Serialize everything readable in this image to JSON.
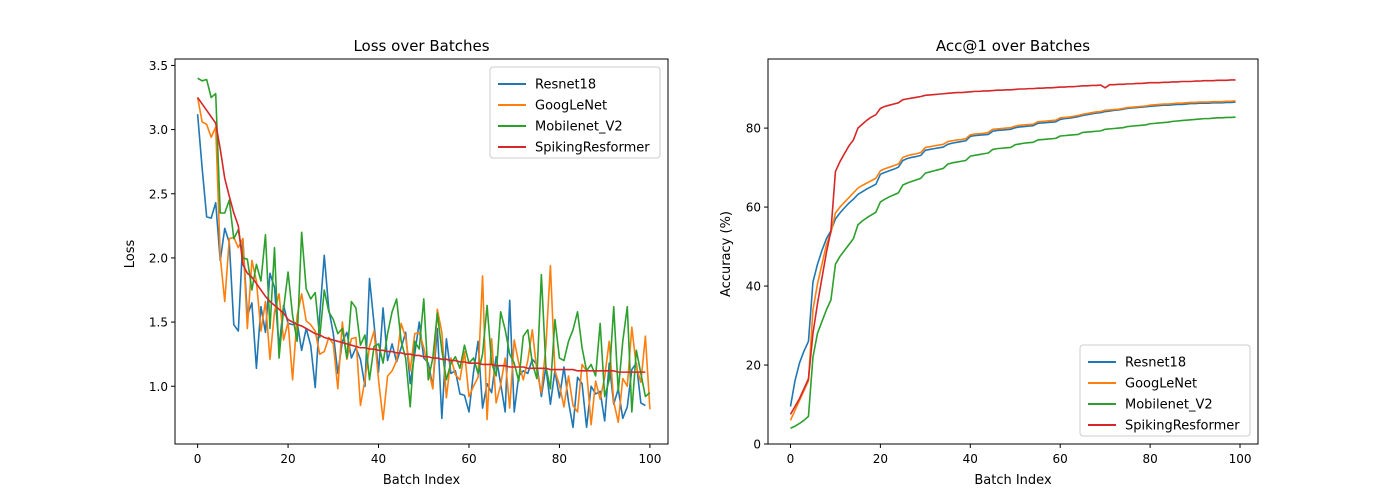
{
  "colors": {
    "Resnet18": "#1f77b4",
    "GoogLeNet": "#ff7f0e",
    "Mobilenet_V2": "#2ca02c",
    "SpikingResformer": "#d62728"
  },
  "chart_data": [
    {
      "type": "line",
      "title": "Loss over Batches",
      "xlabel": "Batch Index",
      "ylabel": "Loss",
      "xlim": [
        -5,
        104
      ],
      "ylim": [
        0.55,
        3.55
      ],
      "xticks": [
        0,
        20,
        40,
        60,
        80,
        100
      ],
      "yticks": [
        1.0,
        1.5,
        2.0,
        2.5,
        3.0,
        3.5
      ],
      "ytick_labels": [
        "1.0",
        "1.5",
        "2.0",
        "2.5",
        "3.0",
        "3.5"
      ],
      "legend": "upper right",
      "series": [
        {
          "name": "Resnet18",
          "values": [
            3.12,
            2.7,
            2.32,
            2.31,
            2.43,
            1.98,
            2.23,
            2.12,
            1.48,
            1.43,
            2.15,
            1.55,
            1.65,
            1.14,
            1.62,
            1.42,
            1.88,
            1.77,
            1.3,
            1.63,
            1.49,
            1.48,
            1.5,
            1.28,
            1.45,
            1.32,
            0.99,
            1.55,
            2.02,
            1.6,
            1.41,
            1.1,
            1.35,
            1.42,
            1.22,
            1.3,
            1.21,
            1.0,
            1.84,
            1.49,
            1.11,
            1.61,
            1.2,
            1.33,
            1.19,
            1.3,
            1.42,
            1.02,
            1.25,
            1.5,
            1.22,
            1.18,
            1.0,
            1.45,
            0.75,
            1.37,
            1.1,
            1.12,
            0.94,
            0.93,
            0.8,
            1.11,
            1.35,
            0.83,
            1.02,
            0.95,
            1.23,
            1.02,
            0.8,
            1.67,
            0.8,
            1.08,
            1.12,
            1.1,
            1.21,
            1.17,
            0.92,
            1.15,
            0.86,
            1.12,
            0.91,
            1.15,
            0.88,
            0.68,
            1.07,
            1.02,
            0.68,
            1.0,
            0.94,
            0.96,
            0.73,
            1.18,
            0.86,
            0.98,
            0.75,
            0.84,
            1.13,
            1.18,
            0.87,
            0.85
          ]
        },
        {
          "name": "GoogLeNet",
          "values": [
            3.25,
            3.06,
            3.04,
            2.94,
            3.02,
            2.01,
            1.66,
            2.15,
            2.16,
            2.08,
            2.15,
            1.45,
            1.98,
            1.82,
            1.43,
            1.66,
            1.21,
            1.58,
            1.72,
            1.36,
            1.5,
            1.05,
            1.55,
            1.72,
            1.51,
            1.48,
            1.43,
            1.25,
            1.27,
            1.38,
            1.33,
            0.98,
            1.5,
            1.21,
            1.37,
            1.38,
            0.85,
            1.05,
            1.31,
            1.43,
            1.05,
            0.74,
            1.08,
            1.12,
            1.2,
            1.49,
            1.38,
            1.12,
            1.41,
            1.42,
            1.3,
            1.14,
            0.98,
            1.6,
            1.42,
            0.91,
            1.22,
            1.09,
            1.05,
            1.27,
            0.92,
            1.0,
            1.07,
            1.86,
            0.74,
            1.37,
            0.87,
            1.01,
            1.22,
            0.83,
            1.36,
            1.18,
            1.05,
            1.2,
            1.44,
            1.12,
            0.95,
            1.31,
            1.94,
            1.12,
            1.01,
            0.84,
            1.08,
            0.85,
            0.8,
            1.17,
            1.12,
            0.7,
            1.04,
            0.9,
            1.07,
            1.35,
            0.88,
            0.72,
            1.06,
            1.0,
            1.46,
            1.15,
            1.03,
            1.39,
            0.82
          ]
        },
        {
          "name": "Mobilenet_V2",
          "values": [
            3.4,
            3.38,
            3.39,
            3.25,
            3.28,
            2.35,
            2.35,
            2.45,
            2.15,
            2.22,
            2.0,
            1.99,
            1.75,
            1.95,
            1.82,
            2.18,
            1.45,
            2.08,
            1.22,
            1.6,
            1.89,
            1.55,
            1.35,
            2.2,
            1.76,
            1.68,
            1.73,
            1.38,
            1.75,
            1.58,
            1.52,
            1.41,
            1.45,
            1.22,
            1.66,
            1.61,
            1.32,
            1.4,
            1.05,
            1.31,
            1.33,
            1.18,
            1.41,
            1.58,
            1.68,
            1.35,
            1.22,
            0.84,
            1.35,
            1.29,
            1.68,
            1.05,
            1.22,
            1.57,
            1.28,
            1.05,
            1.18,
            1.23,
            1.14,
            1.32,
            1.18,
            1.22,
            1.1,
            1.25,
            1.63,
            1.18,
            1.08,
            1.58,
            1.44,
            1.25,
            1.18,
            1.04,
            1.39,
            1.44,
            1.18,
            1.06,
            1.87,
            1.15,
            0.98,
            1.52,
            1.22,
            1.2,
            1.35,
            1.44,
            1.58,
            1.3,
            1.12,
            1.17,
            1.08,
            1.49,
            0.92,
            1.05,
            1.62,
            0.96,
            1.35,
            1.62,
            0.8,
            1.28,
            1.1,
            0.92,
            0.95
          ]
        },
        {
          "name": "SpikingResformer",
          "values": [
            3.25,
            3.2,
            3.15,
            3.1,
            3.05,
            2.85,
            2.62,
            2.48,
            2.35,
            2.25,
            1.95,
            1.88,
            1.85,
            1.8,
            1.75,
            1.7,
            1.66,
            1.63,
            1.6,
            1.57,
            1.52,
            1.5,
            1.48,
            1.47,
            1.45,
            1.43,
            1.41,
            1.4,
            1.38,
            1.37,
            1.36,
            1.35,
            1.34,
            1.33,
            1.32,
            1.31,
            1.3,
            1.3,
            1.29,
            1.29,
            1.28,
            1.28,
            1.27,
            1.27,
            1.26,
            1.26,
            1.25,
            1.25,
            1.24,
            1.24,
            1.23,
            1.23,
            1.22,
            1.22,
            1.21,
            1.21,
            1.2,
            1.2,
            1.19,
            1.19,
            1.18,
            1.18,
            1.18,
            1.17,
            1.17,
            1.17,
            1.16,
            1.16,
            1.16,
            1.15,
            1.15,
            1.15,
            1.15,
            1.14,
            1.14,
            1.14,
            1.14,
            1.14,
            1.13,
            1.13,
            1.13,
            1.13,
            1.13,
            1.13,
            1.12,
            1.12,
            1.12,
            1.12,
            1.12,
            1.12,
            1.12,
            1.12,
            1.12,
            1.11,
            1.11,
            1.11,
            1.11,
            1.11,
            1.11,
            1.11
          ]
        }
      ]
    },
    {
      "type": "line",
      "title": "Acc@1 over Batches",
      "xlabel": "Batch Index",
      "ylabel": "Accuracy (%)",
      "xlim": [
        -5,
        104
      ],
      "ylim": [
        0,
        97.5
      ],
      "xticks": [
        0,
        20,
        40,
        60,
        80,
        100
      ],
      "yticks": [
        0,
        20,
        40,
        60,
        80
      ],
      "ytick_labels": [
        "0",
        "20",
        "40",
        "60",
        "80"
      ],
      "legend": "lower right",
      "series": [
        {
          "name": "Resnet18",
          "values": [
            9.5,
            16.0,
            20.5,
            23.5,
            26.0,
            41.0,
            45.5,
            49.0,
            52.0,
            54.0,
            57.0,
            58.5,
            59.8,
            61.0,
            62.0,
            63.2,
            63.9,
            64.6,
            65.2,
            65.8,
            68.3,
            68.8,
            69.2,
            69.6,
            70.1,
            71.8,
            72.3,
            72.6,
            72.8,
            73.1,
            74.4,
            74.6,
            74.8,
            75.0,
            75.2,
            75.9,
            76.2,
            76.4,
            76.6,
            76.8,
            77.9,
            78.1,
            78.2,
            78.3,
            78.4,
            79.2,
            79.4,
            79.5,
            79.6,
            79.7,
            80.1,
            80.3,
            80.4,
            80.5,
            80.6,
            81.2,
            81.3,
            81.4,
            81.5,
            81.6,
            82.2,
            82.4,
            82.5,
            82.7,
            82.9,
            83.2,
            83.4,
            83.6,
            83.8,
            83.9,
            84.2,
            84.3,
            84.5,
            84.6,
            84.8,
            85.0,
            85.1,
            85.2,
            85.3,
            85.4,
            85.5,
            85.6,
            85.7,
            85.8,
            85.8,
            85.9,
            86.0,
            86.0,
            86.1,
            86.2,
            86.2,
            86.3,
            86.3,
            86.3,
            86.4,
            86.4,
            86.4,
            86.5,
            86.5,
            86.6
          ]
        },
        {
          "name": "GoogLeNet",
          "values": [
            6.0,
            8.5,
            11.0,
            13.5,
            16.0,
            34.0,
            40.5,
            45.5,
            50.5,
            53.5,
            58.5,
            60.0,
            61.2,
            62.4,
            63.6,
            64.8,
            65.5,
            66.1,
            66.7,
            67.3,
            69.2,
            69.7,
            70.1,
            70.5,
            70.9,
            72.6,
            73.0,
            73.3,
            73.5,
            73.8,
            75.1,
            75.3,
            75.5,
            75.7,
            75.9,
            76.6,
            76.8,
            77.0,
            77.1,
            77.3,
            78.3,
            78.5,
            78.6,
            78.7,
            78.9,
            79.7,
            79.8,
            79.9,
            80.0,
            80.1,
            80.5,
            80.7,
            80.8,
            80.9,
            81.0,
            81.6,
            81.7,
            81.8,
            81.9,
            82.0,
            82.6,
            82.7,
            82.8,
            83.0,
            83.2,
            83.5,
            83.7,
            83.9,
            84.1,
            84.2,
            84.5,
            84.6,
            84.7,
            84.8,
            85.0,
            85.2,
            85.3,
            85.4,
            85.5,
            85.6,
            85.8,
            85.9,
            86.0,
            86.1,
            86.1,
            86.2,
            86.3,
            86.3,
            86.4,
            86.5,
            86.5,
            86.6,
            86.6,
            86.6,
            86.7,
            86.7,
            86.7,
            86.8,
            86.8,
            86.9
          ]
        },
        {
          "name": "Mobilenet_V2",
          "values": [
            4.0,
            4.5,
            5.2,
            6.0,
            7.0,
            22.0,
            28.0,
            31.0,
            34.0,
            36.5,
            45.5,
            47.5,
            49.0,
            50.5,
            52.0,
            55.5,
            56.5,
            57.3,
            58.0,
            58.7,
            61.3,
            62.0,
            62.6,
            63.1,
            63.6,
            65.6,
            66.1,
            66.5,
            66.9,
            67.3,
            68.6,
            68.9,
            69.2,
            69.5,
            69.8,
            70.9,
            71.2,
            71.4,
            71.6,
            71.8,
            72.9,
            73.1,
            73.3,
            73.5,
            73.7,
            74.6,
            74.8,
            74.9,
            75.0,
            75.1,
            75.8,
            76.0,
            76.2,
            76.3,
            76.4,
            77.0,
            77.1,
            77.2,
            77.3,
            77.4,
            78.0,
            78.1,
            78.2,
            78.3,
            78.4,
            78.9,
            79.0,
            79.1,
            79.2,
            79.3,
            79.7,
            79.8,
            79.9,
            80.0,
            80.1,
            80.4,
            80.5,
            80.6,
            80.7,
            80.8,
            81.1,
            81.2,
            81.3,
            81.4,
            81.5,
            81.7,
            81.8,
            81.9,
            82.0,
            82.1,
            82.2,
            82.3,
            82.4,
            82.4,
            82.5,
            82.6,
            82.6,
            82.7,
            82.7,
            82.8
          ]
        },
        {
          "name": "SpikingResformer",
          "values": [
            7.5,
            9.5,
            11.5,
            14.0,
            16.5,
            28.0,
            35.5,
            42.0,
            48.5,
            54.0,
            69.0,
            71.5,
            73.5,
            75.5,
            77.0,
            80.0,
            81.0,
            82.0,
            82.8,
            83.4,
            85.0,
            85.5,
            85.8,
            86.1,
            86.4,
            87.2,
            87.4,
            87.6,
            87.8,
            88.0,
            88.3,
            88.4,
            88.5,
            88.6,
            88.7,
            88.8,
            88.9,
            89.0,
            89.0,
            89.1,
            89.2,
            89.3,
            89.3,
            89.4,
            89.4,
            89.5,
            89.6,
            89.6,
            89.7,
            89.7,
            89.8,
            89.9,
            89.9,
            90.0,
            90.0,
            90.1,
            90.1,
            90.2,
            90.2,
            90.3,
            90.4,
            90.4,
            90.5,
            90.5,
            90.6,
            90.7,
            90.7,
            90.8,
            90.8,
            90.9,
            90.2,
            91.0,
            91.0,
            91.1,
            91.1,
            91.2,
            91.2,
            91.3,
            91.3,
            91.4,
            91.5,
            91.5,
            91.5,
            91.6,
            91.6,
            91.7,
            91.7,
            91.8,
            91.8,
            91.8,
            91.9,
            91.9,
            92.0,
            92.0,
            92.0,
            92.1,
            92.1,
            92.1,
            92.2,
            92.2
          ]
        }
      ]
    }
  ]
}
